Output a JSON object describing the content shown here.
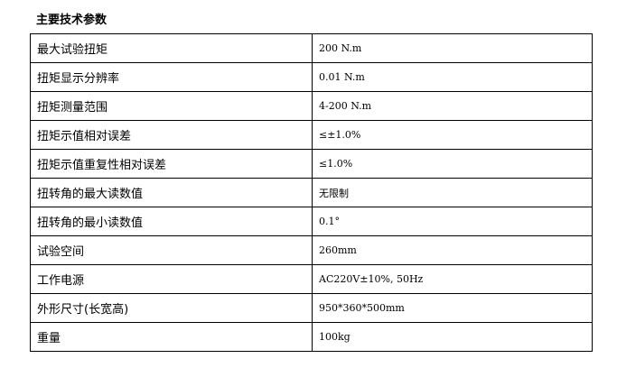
{
  "title": "主要技术参数",
  "rows": [
    {
      "label": "最大试验扭矩",
      "value": "200 N.m"
    },
    {
      "label": "扭矩显示分辨率",
      "value": "0.01 N.m"
    },
    {
      "label": "扭矩测量范围",
      "value": "4-200 N.m"
    },
    {
      "label": "扭矩示值相对误差",
      "value": "≤±1.0%"
    },
    {
      "label": "扭矩示值重复性相对误差",
      "value": "≤1.0%"
    },
    {
      "label": "扭转角的最大读数值",
      "value": "无限制"
    },
    {
      "label": "扭转角的最小读数值",
      "value": "0.1°"
    },
    {
      "label": "试验空间",
      "value": "260mm"
    },
    {
      "label": "工作电源",
      "value": "AC220V±10%, 50Hz"
    },
    {
      "label": "外形尺寸(长宽高)",
      "value": "950*360*500mm"
    },
    {
      "label": "重量",
      "value": "100kg"
    }
  ]
}
